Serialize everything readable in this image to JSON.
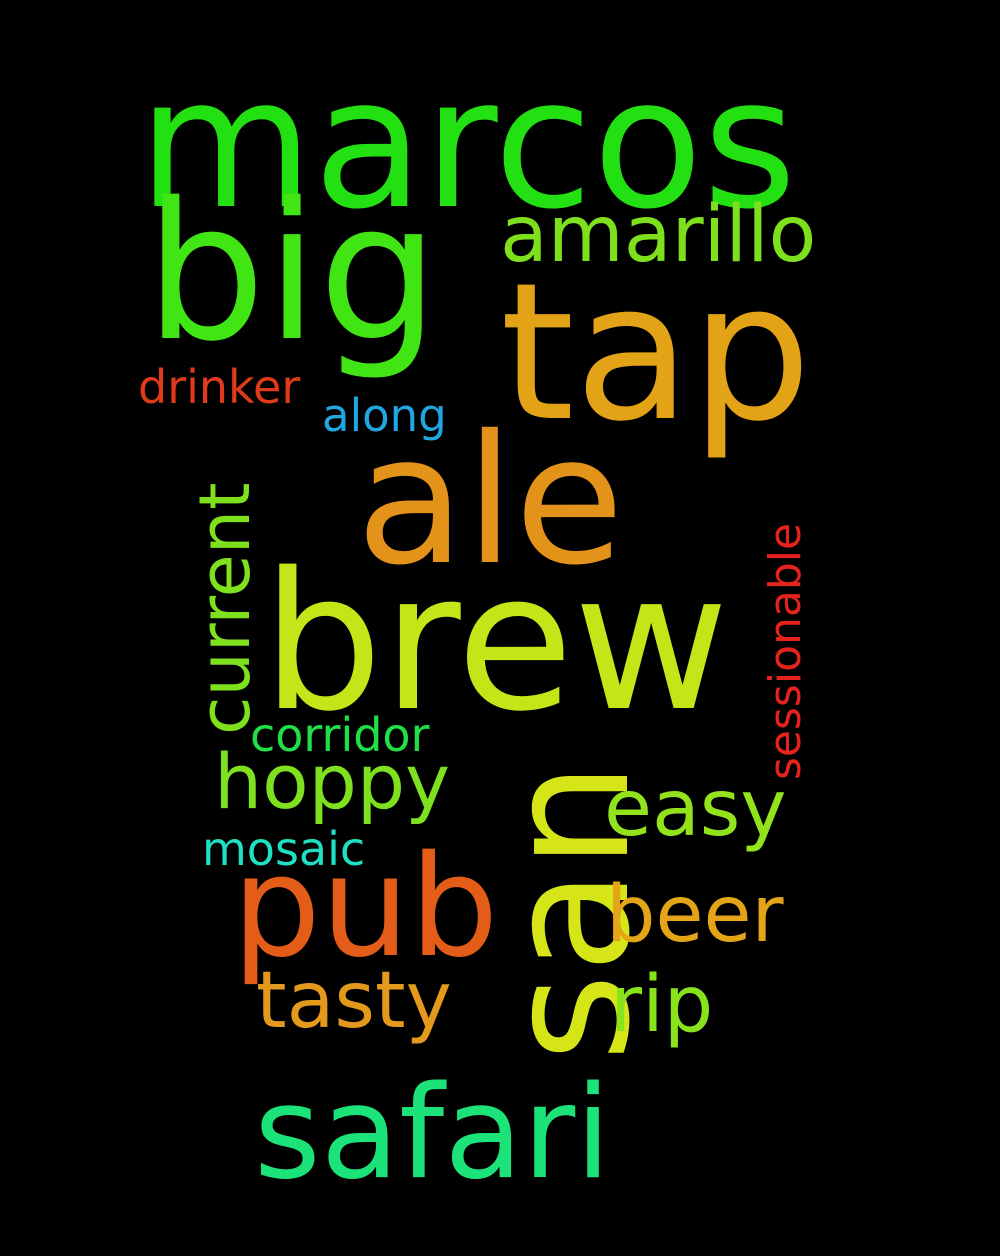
{
  "words": [
    {
      "id": "marcos",
      "text": "marcos",
      "color": "#22e011"
    },
    {
      "id": "big",
      "text": "big",
      "color": "#41e514"
    },
    {
      "id": "amarillo",
      "text": "amarillo",
      "color": "#7ee01c"
    },
    {
      "id": "tap",
      "text": "tap",
      "color": "#e3a316"
    },
    {
      "id": "drinker",
      "text": "drinker",
      "color": "#e13a1b"
    },
    {
      "id": "along",
      "text": "along",
      "color": "#22a6e0"
    },
    {
      "id": "ale",
      "text": "ale",
      "color": "#e3931a"
    },
    {
      "id": "current",
      "text": "current",
      "color": "#7fe01e"
    },
    {
      "id": "brew",
      "text": "brew",
      "color": "#c4e517"
    },
    {
      "id": "sessionable",
      "text": "sessionable",
      "color": "#e5221b"
    },
    {
      "id": "san",
      "text": "san",
      "color": "#d5e517"
    },
    {
      "id": "corridor",
      "text": "corridor",
      "color": "#20e048"
    },
    {
      "id": "hoppy",
      "text": "hoppy",
      "color": "#7ee01f"
    },
    {
      "id": "easy",
      "text": "easy",
      "color": "#92e21c"
    },
    {
      "id": "mosaic",
      "text": "mosaic",
      "color": "#20e0c3"
    },
    {
      "id": "pub",
      "text": "pub",
      "color": "#e45d18"
    },
    {
      "id": "beer",
      "text": "beer",
      "color": "#e3a418"
    },
    {
      "id": "tasty",
      "text": "tasty",
      "color": "#e39a1c"
    },
    {
      "id": "rip",
      "text": "rip",
      "color": "#89e21c"
    },
    {
      "id": "safari",
      "text": "safari",
      "color": "#1ce27a"
    }
  ]
}
